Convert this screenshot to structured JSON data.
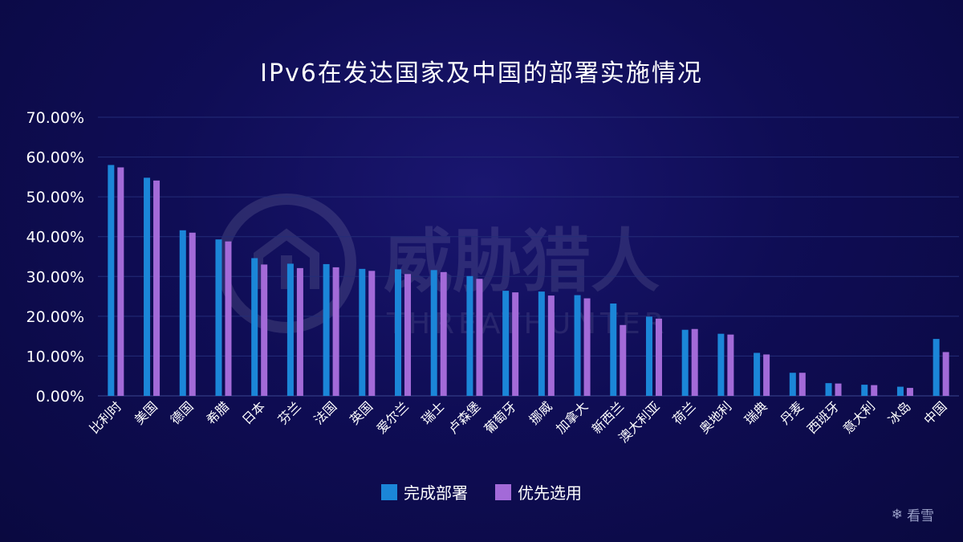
{
  "chart_data": {
    "type": "bar",
    "title": "IPv6在发达国家及中国的部署实施情况",
    "categories": [
      "比利时",
      "美国",
      "德国",
      "希腊",
      "日本",
      "芬兰",
      "法国",
      "英国",
      "爱尔兰",
      "瑞士",
      "卢森堡",
      "葡萄牙",
      "挪威",
      "加拿大",
      "新西兰",
      "澳大利亚",
      "荷兰",
      "奥地利",
      "瑞典",
      "丹麦",
      "西班牙",
      "意大利",
      "冰岛",
      "中国"
    ],
    "series": [
      {
        "name": "完成部署",
        "color": "#1b86d8",
        "values": [
          58.0,
          54.8,
          41.6,
          39.3,
          34.6,
          33.2,
          33.1,
          31.9,
          31.8,
          31.6,
          30.1,
          26.4,
          26.2,
          25.3,
          23.2,
          19.9,
          16.6,
          15.6,
          10.8,
          5.8,
          3.2,
          2.8,
          2.3,
          14.3
        ]
      },
      {
        "name": "优先选用",
        "color": "#a36ad8",
        "values": [
          57.4,
          54.1,
          41.0,
          38.8,
          33.0,
          32.1,
          32.3,
          31.4,
          30.6,
          31.1,
          29.4,
          26.0,
          25.2,
          24.5,
          17.8,
          19.4,
          16.8,
          15.4,
          10.4,
          5.8,
          3.1,
          2.7,
          2.0,
          11.0
        ]
      }
    ],
    "yticks": [
      "0.00%",
      "10.00%",
      "20.00%",
      "30.00%",
      "40.00%",
      "50.00%",
      "60.00%",
      "70.00%"
    ],
    "ylim": [
      0,
      70
    ],
    "grid": true,
    "legend_position": "bottom-center"
  },
  "watermark": {
    "brand_cn": "威胁猎人",
    "brand_en": "THREATHUNTER",
    "site": "看雪",
    "site_icon": "snowflake-icon"
  }
}
